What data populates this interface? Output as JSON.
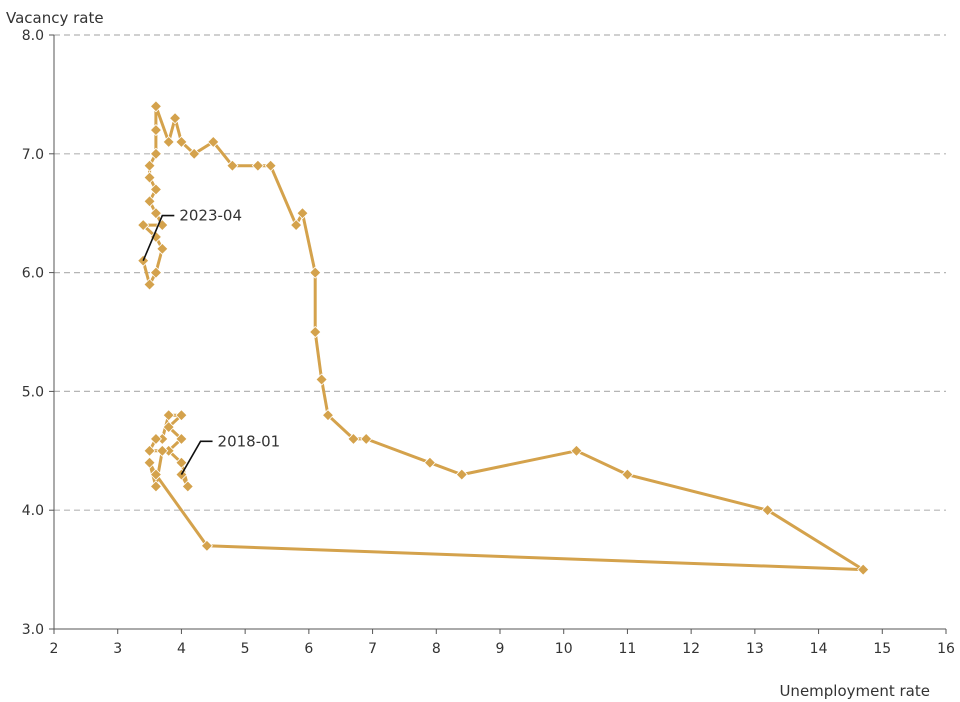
{
  "chart_data": {
    "type": "line",
    "title": "",
    "xlabel": "Unemployment rate",
    "ylabel": "Vacancy rate",
    "xlim": [
      2,
      16
    ],
    "ylim": [
      3.0,
      8.0
    ],
    "x_ticks": [
      2,
      3,
      4,
      5,
      6,
      7,
      8,
      9,
      10,
      11,
      12,
      13,
      14,
      15,
      16
    ],
    "y_ticks": [
      "3.0",
      "4.0",
      "5.0",
      "6.0",
      "7.0",
      "8.0"
    ],
    "grid": "horizontal dashed",
    "line_color": "#d4a24c",
    "series": [
      {
        "points": [
          {
            "x": 4.0,
            "y": 4.3
          },
          {
            "x": 4.1,
            "y": 4.2
          },
          {
            "x": 4.0,
            "y": 4.4
          },
          {
            "x": 3.8,
            "y": 4.5
          },
          {
            "x": 4.0,
            "y": 4.6
          },
          {
            "x": 3.8,
            "y": 4.7
          },
          {
            "x": 4.0,
            "y": 4.8
          },
          {
            "x": 3.8,
            "y": 4.8
          },
          {
            "x": 3.7,
            "y": 4.6
          },
          {
            "x": 3.6,
            "y": 4.6
          },
          {
            "x": 3.5,
            "y": 4.5
          },
          {
            "x": 3.7,
            "y": 4.5
          },
          {
            "x": 3.6,
            "y": 4.2
          },
          {
            "x": 3.5,
            "y": 4.4
          },
          {
            "x": 3.6,
            "y": 4.3
          },
          {
            "x": 4.4,
            "y": 3.7
          },
          {
            "x": 14.7,
            "y": 3.5
          },
          {
            "x": 13.2,
            "y": 4.0
          },
          {
            "x": 11.0,
            "y": 4.3
          },
          {
            "x": 10.2,
            "y": 4.5
          },
          {
            "x": 8.4,
            "y": 4.3
          },
          {
            "x": 7.9,
            "y": 4.4
          },
          {
            "x": 6.9,
            "y": 4.6
          },
          {
            "x": 6.7,
            "y": 4.6
          },
          {
            "x": 6.3,
            "y": 4.8
          },
          {
            "x": 6.2,
            "y": 5.1
          },
          {
            "x": 6.1,
            "y": 5.5
          },
          {
            "x": 6.1,
            "y": 6.0
          },
          {
            "x": 5.9,
            "y": 6.5
          },
          {
            "x": 5.8,
            "y": 6.4
          },
          {
            "x": 5.4,
            "y": 6.9
          },
          {
            "x": 5.2,
            "y": 6.9
          },
          {
            "x": 4.8,
            "y": 6.9
          },
          {
            "x": 4.5,
            "y": 7.1
          },
          {
            "x": 4.2,
            "y": 7.0
          },
          {
            "x": 4.0,
            "y": 7.1
          },
          {
            "x": 3.9,
            "y": 7.3
          },
          {
            "x": 3.8,
            "y": 7.1
          },
          {
            "x": 3.6,
            "y": 7.4
          },
          {
            "x": 3.6,
            "y": 7.2
          },
          {
            "x": 3.6,
            "y": 7.0
          },
          {
            "x": 3.5,
            "y": 6.9
          },
          {
            "x": 3.5,
            "y": 6.8
          },
          {
            "x": 3.6,
            "y": 6.7
          },
          {
            "x": 3.5,
            "y": 6.6
          },
          {
            "x": 3.6,
            "y": 6.5
          },
          {
            "x": 3.7,
            "y": 6.4
          },
          {
            "x": 3.4,
            "y": 6.4
          },
          {
            "x": 3.6,
            "y": 6.3
          },
          {
            "x": 3.7,
            "y": 6.2
          },
          {
            "x": 3.6,
            "y": 6.0
          },
          {
            "x": 3.5,
            "y": 5.9
          },
          {
            "x": 3.4,
            "y": 6.1
          }
        ]
      }
    ],
    "annotations": [
      {
        "text": "2018-01",
        "x": 4.0,
        "y": 4.3,
        "label_x": 4.3,
        "label_y": 4.58
      },
      {
        "text": "2023-04",
        "x": 3.4,
        "y": 6.1,
        "label_x": 3.7,
        "label_y": 6.48
      }
    ]
  }
}
